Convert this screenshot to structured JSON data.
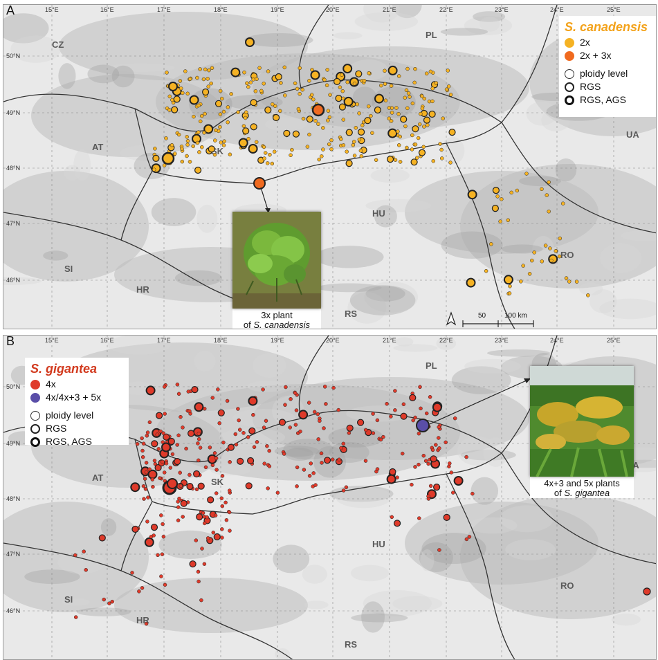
{
  "panels": [
    {
      "id": "A",
      "species": "S. canadensis",
      "title_color": "#f3a21a",
      "legend_items": [
        {
          "label": "2x",
          "color": "#f5b223"
        },
        {
          "label": "2x + 3x",
          "color": "#f06a1f"
        }
      ],
      "legend_size_items": [
        "ploidy level",
        "RGS",
        "RGS, AGS"
      ],
      "photo_caption_line1": "3x plant",
      "photo_caption_line2_prefix": "of ",
      "photo_caption_line2_species": "S. canadensis",
      "point_color": "#f5b223"
    },
    {
      "id": "B",
      "species": "S. gigantea",
      "title_color": "#d23a1e",
      "legend_items": [
        {
          "label": "4x",
          "color": "#df3a2a"
        },
        {
          "label": "4x/4x+3 + 5x",
          "color": "#5a4ea8"
        }
      ],
      "legend_size_items": [
        "ploidy level",
        "RGS",
        "RGS, AGS"
      ],
      "photo_caption_line1": "4x+3 and 5x plants",
      "photo_caption_line2_prefix": "of ",
      "photo_caption_line2_species": "S. gigantea",
      "point_color": "#df3a2a"
    }
  ],
  "longitude_labels": [
    "15°E",
    "16°E",
    "17°E",
    "18°E",
    "19°E",
    "20°E",
    "21°E",
    "22°E",
    "23°E",
    "24°E",
    "25°E"
  ],
  "latitude_labels": [
    "50°N",
    "49°N",
    "48°N",
    "47°N",
    "46°N"
  ],
  "countries": [
    "CZ",
    "PL",
    "AT",
    "SK",
    "UA",
    "HU",
    "RO",
    "SI",
    "HR",
    "RS"
  ],
  "scale_bar": {
    "label_mid": "50",
    "label_end": "100 km"
  },
  "north_arrow": "north-arrow"
}
